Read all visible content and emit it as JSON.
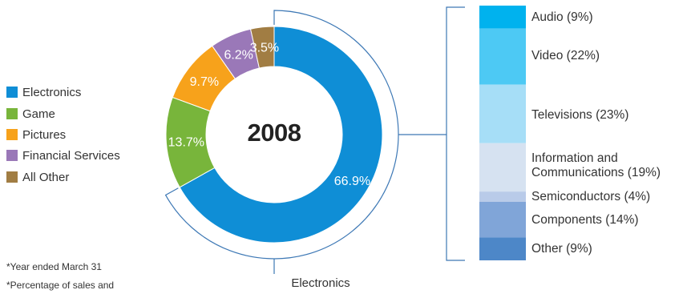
{
  "chart_data": [
    {
      "type": "pie",
      "title": "2008",
      "categories": [
        "Electronics",
        "Game",
        "Pictures",
        "Financial Services",
        "All Other"
      ],
      "values": [
        66.9,
        13.7,
        9.7,
        6.2,
        3.5
      ],
      "value_labels": [
        "66.9%",
        "13.7%",
        "9.7%",
        "6.2%",
        "3.5%"
      ],
      "colors": [
        "#0f8ed6",
        "#78b53b",
        "#f7a21b",
        "#9a78b8",
        "#a17d43"
      ],
      "legend_placement": "left",
      "highlight_label": "Electronics"
    },
    {
      "type": "bar",
      "orientation": "stacked-vertical",
      "categories": [
        "Audio",
        "Video",
        "Televisions",
        "Information and Communications",
        "Semiconductors",
        "Components",
        "Other"
      ],
      "values": [
        9,
        22,
        23,
        19,
        4,
        14,
        9
      ],
      "labels": [
        "Audio (9%)",
        "Video (22%)",
        "Televisions (23%)",
        "Information and\nCommunications (19%)",
        "Semiconductors (4%)",
        "Components (14%)",
        "Other (9%)"
      ],
      "colors": [
        "#00b2ee",
        "#4dc9f4",
        "#a6def7",
        "#d6e2f1",
        "#b9cbe9",
        "#80a5d8",
        "#4d87c8"
      ]
    }
  ],
  "notes": [
    "*Year ended March 31",
    "*Percentage of sales and"
  ]
}
